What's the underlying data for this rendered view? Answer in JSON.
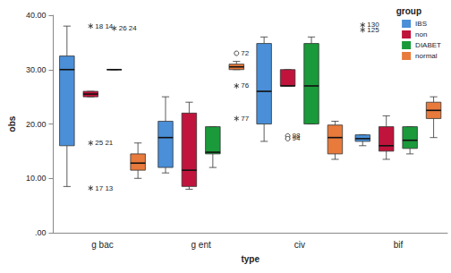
{
  "chart_data": {
    "type": "boxplot",
    "x_label": "type",
    "y_label": "obs",
    "legend_title": "group",
    "legend": "top-right",
    "grid": false,
    "categories": [
      "g bac",
      "g ent",
      "civ",
      "bif"
    ],
    "ylim": [
      0,
      40
    ],
    "yticks": [
      {
        "value": 0,
        "label": ".00"
      },
      {
        "value": 10,
        "label": "10.00"
      },
      {
        "value": 20,
        "label": "20.00"
      },
      {
        "value": 30,
        "label": "30.00"
      },
      {
        "value": 40,
        "label": "40.00"
      }
    ],
    "series": [
      {
        "name": "IBS",
        "color": "#4a8fd8",
        "values": [
          [
            8.5,
            16,
            30,
            32.5,
            38
          ],
          [
            11,
            12,
            17.5,
            20.5,
            25
          ],
          [
            16.8,
            20,
            26,
            34.8,
            36
          ],
          [
            16,
            16.8,
            17.3,
            18,
            18
          ]
        ],
        "outliers": [
          {
            "category": "bif",
            "value": 38.2,
            "labels": [
              "130"
            ],
            "marker": "star"
          },
          {
            "category": "bif",
            "value": 37.3,
            "labels": [
              "125"
            ],
            "marker": "star"
          }
        ]
      },
      {
        "name": "non",
        "color": "#c0143c",
        "values": [
          [
            25,
            25,
            25.5,
            26,
            26
          ],
          [
            8,
            8.5,
            11.5,
            22,
            24
          ],
          [
            27,
            27,
            27,
            30,
            30
          ],
          [
            13.5,
            15,
            16,
            19.5,
            21.5
          ]
        ],
        "outliers": [
          {
            "category": "g bac",
            "value": 38,
            "labels": [
              "18",
              "14"
            ],
            "marker": "star"
          },
          {
            "category": "g bac",
            "value": 16.5,
            "labels": [
              "25",
              "21"
            ],
            "marker": "star"
          },
          {
            "category": "g bac",
            "value": 8.2,
            "labels": [
              "17",
              "13"
            ],
            "marker": "star"
          },
          {
            "category": "civ",
            "value": 17.8,
            "labels": [
              "98"
            ],
            "marker": "circle"
          },
          {
            "category": "civ",
            "value": 17.3,
            "labels": [
              "94"
            ],
            "marker": "circle"
          }
        ]
      },
      {
        "name": "DIABET",
        "color": "#1a9a3a",
        "values": [
          [
            30,
            30,
            30,
            30,
            30
          ],
          [
            12,
            14.5,
            14.8,
            19.5,
            19.5
          ],
          [
            20,
            20,
            27,
            34.8,
            36
          ],
          [
            14.5,
            15.5,
            17,
            19.5,
            19.5
          ]
        ],
        "outliers": [
          {
            "category": "g bac",
            "value": 37.6,
            "labels": [
              "26",
              "24"
            ],
            "marker": "star"
          }
        ]
      },
      {
        "name": "normal",
        "color": "#e87a3c",
        "values": [
          [
            10,
            11.5,
            12.8,
            14.5,
            16.5
          ],
          [
            30,
            30,
            30.5,
            31,
            31.5
          ],
          [
            13.5,
            14.5,
            17.5,
            19.8,
            20.5
          ],
          [
            17.5,
            21,
            22.5,
            24,
            25
          ]
        ],
        "outliers": [
          {
            "category": "g ent",
            "value": 33,
            "labels": [
              "72"
            ],
            "marker": "circle"
          },
          {
            "category": "g ent",
            "value": 27,
            "labels": [
              "76"
            ],
            "marker": "star"
          },
          {
            "category": "g ent",
            "value": 21,
            "labels": [
              "77"
            ],
            "marker": "star"
          }
        ]
      }
    ]
  }
}
